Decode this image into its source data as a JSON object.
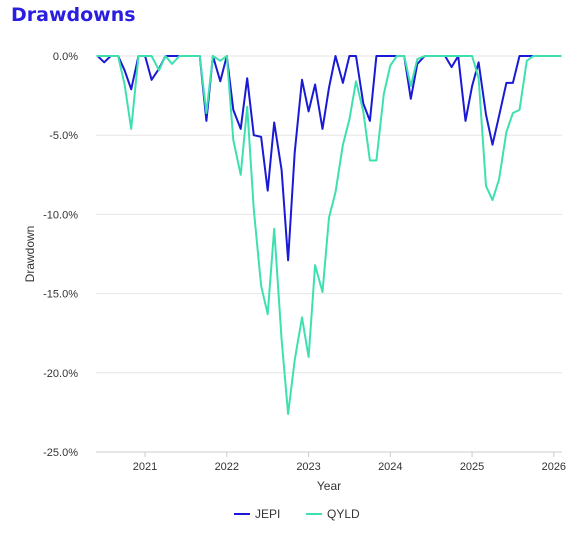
{
  "chart_data": {
    "type": "line",
    "title": "Drawdowns",
    "xlabel": "Year",
    "ylabel": "Drawdown",
    "ylim": [
      -25,
      0
    ],
    "xlim": [
      2020.4,
      2026.1
    ],
    "y_ticks": [
      0,
      -5,
      -10,
      -15,
      -20,
      -25
    ],
    "y_tick_labels": [
      "0.0%",
      "-5.0%",
      "-10.0%",
      "-15.0%",
      "-20.0%",
      "-25.0%"
    ],
    "x_ticks": [
      2021,
      2022,
      2023,
      2024,
      2025,
      2026
    ],
    "x_tick_labels": [
      "2021",
      "2022",
      "2023",
      "2024",
      "2025",
      "2026"
    ],
    "grid": true,
    "legend_position": "bottom",
    "x": [
      2020.42,
      2020.5,
      2020.58,
      2020.67,
      2020.75,
      2020.83,
      2020.92,
      2021.0,
      2021.08,
      2021.17,
      2021.25,
      2021.33,
      2021.42,
      2021.5,
      2021.58,
      2021.67,
      2021.75,
      2021.83,
      2021.92,
      2022.0,
      2022.08,
      2022.17,
      2022.25,
      2022.33,
      2022.42,
      2022.5,
      2022.58,
      2022.67,
      2022.75,
      2022.83,
      2022.92,
      2023.0,
      2023.08,
      2023.17,
      2023.25,
      2023.33,
      2023.42,
      2023.5,
      2023.58,
      2023.67,
      2023.75,
      2023.83,
      2023.92,
      2024.0,
      2024.08,
      2024.17,
      2024.25,
      2024.33,
      2024.42,
      2024.5,
      2024.58,
      2024.67,
      2024.75,
      2024.83,
      2024.92,
      2025.0,
      2025.08,
      2025.17,
      2025.25,
      2025.33,
      2025.42,
      2025.5,
      2025.58,
      2025.67,
      2025.75,
      2025.83,
      2025.92,
      2026.0,
      2026.08
    ],
    "series": [
      {
        "name": "JEPI",
        "color": "#1a1ad6",
        "values": [
          0,
          -0.4,
          0,
          0,
          -0.9,
          -2.1,
          0,
          0,
          -1.5,
          -0.8,
          0,
          0,
          0,
          0,
          0,
          0,
          -4.1,
          0,
          -1.6,
          0,
          -3.4,
          -4.6,
          -1.4,
          -5,
          -5.1,
          -8.5,
          -4.2,
          -7.2,
          -12.9,
          -6.1,
          -1.5,
          -3.5,
          -1.8,
          -4.6,
          -2,
          0,
          -1.7,
          0,
          0,
          -3,
          -4.1,
          0,
          0,
          0,
          0,
          0,
          -2.7,
          -0.5,
          0,
          0,
          0,
          0,
          -0.7,
          0,
          -4.1,
          -1.9,
          -0.4,
          -3.7,
          -5.6,
          -3.8,
          -1.7,
          -1.7,
          0,
          0,
          0,
          0,
          0,
          0,
          0
        ]
      },
      {
        "name": "QYLD",
        "color": "#3fe0b0",
        "values": [
          0,
          0,
          0,
          0,
          -1.8,
          -4.6,
          0,
          0,
          0,
          -0.9,
          0,
          -0.5,
          0,
          0,
          0,
          0,
          -3.6,
          0,
          -0.3,
          0,
          -5.3,
          -7.5,
          -3.2,
          -9.7,
          -14.5,
          -16.3,
          -10.9,
          -17.9,
          -22.6,
          -19.2,
          -16.5,
          -19,
          -13.2,
          -14.9,
          -10.2,
          -8.6,
          -5.6,
          -4,
          -1.6,
          -3.5,
          -6.6,
          -6.6,
          -2.4,
          -0.6,
          0,
          0,
          -1.9,
          -0.2,
          0,
          0,
          0,
          0,
          0,
          0,
          0,
          0,
          -1.4,
          -8.2,
          -9.1,
          -7.8,
          -4.8,
          -3.6,
          -3.4,
          -0.3,
          0,
          0,
          0,
          0,
          0
        ]
      }
    ]
  }
}
